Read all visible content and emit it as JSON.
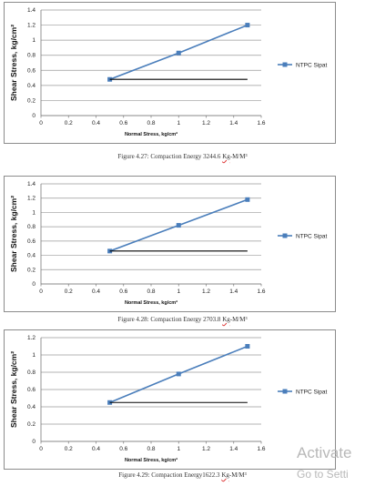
{
  "chart_data": [
    {
      "type": "line",
      "ylabel": "Shear Stress, kg/cm²",
      "xlabel": "Normal Stress, kg/cm²",
      "xlim": [
        0,
        1.6
      ],
      "ylim": [
        0,
        1.4
      ],
      "xticks": [
        "0",
        "0.2",
        "0.4",
        "0.6",
        "0.8",
        "1",
        "1.2",
        "1.4",
        "1.6"
      ],
      "yticks": [
        "0",
        "0.2",
        "0.4",
        "0.6",
        "0.8",
        "1",
        "1.2",
        "1.4"
      ],
      "grid": "horizontal",
      "legend_position": "right",
      "series": [
        {
          "name": "NTPC Sipat",
          "color": "#4a7ebb",
          "x": [
            0.5,
            1.0,
            1.5
          ],
          "y": [
            0.48,
            0.83,
            1.2
          ]
        },
        {
          "color": "#000000",
          "x": [
            0.5,
            1.5
          ],
          "y": [
            0.48,
            0.48
          ]
        }
      ]
    },
    {
      "type": "line",
      "ylabel": "Shear Stress, kg/cm²",
      "xlabel": "Normal Stress, kg/cm²",
      "xlim": [
        0,
        1.6
      ],
      "ylim": [
        0,
        1.4
      ],
      "xticks": [
        "0",
        "0.2",
        "0.4",
        "0.6",
        "0.8",
        "1",
        "1.2",
        "1.4",
        "1.6"
      ],
      "yticks": [
        "0",
        "0.2",
        "0.4",
        "0.6",
        "0.8",
        "1",
        "1.2",
        "1.4"
      ],
      "grid": "horizontal",
      "legend_position": "right",
      "series": [
        {
          "name": "NTPC Sipat",
          "color": "#4a7ebb",
          "x": [
            0.5,
            1.0,
            1.5
          ],
          "y": [
            0.46,
            0.82,
            1.18
          ]
        },
        {
          "color": "#000000",
          "x": [
            0.5,
            1.5
          ],
          "y": [
            0.46,
            0.46
          ]
        }
      ]
    },
    {
      "type": "line",
      "ylabel": "Shear Stress, kg/cm²",
      "xlabel": "Normal Stress, kg/cm²",
      "xlim": [
        0,
        1.6
      ],
      "ylim": [
        0,
        1.2
      ],
      "xticks": [
        "0",
        "0.2",
        "0.4",
        "0.6",
        "0.8",
        "1",
        "1.2",
        "1.4",
        "1.6"
      ],
      "yticks": [
        "0",
        "0.2",
        "0.4",
        "0.6",
        "0.8",
        "1",
        "1.2"
      ],
      "grid": "horizontal",
      "legend_position": "right",
      "series": [
        {
          "name": "NTPC Sipat",
          "color": "#4a7ebb",
          "x": [
            0.5,
            1.0,
            1.5
          ],
          "y": [
            0.45,
            0.78,
            1.1
          ]
        },
        {
          "color": "#000000",
          "x": [
            0.5,
            1.5
          ],
          "y": [
            0.45,
            0.45
          ]
        }
      ]
    }
  ],
  "captions": [
    {
      "prefix": "Figure 4.27: Compaction  Energy 3244.6 ",
      "kg": "Kg",
      "suffix": "-M/M³"
    },
    {
      "prefix": "Figure 4.28: Compaction  Energy 2703.8 ",
      "kg": "Kg",
      "suffix": "-M/M³"
    },
    {
      "prefix": "Figure 4.29: Compaction  Energy1622.3 ",
      "kg": "Kg",
      "suffix": "-M/M³"
    }
  ],
  "watermark": {
    "line1": "Activate",
    "line2": "Go to Setti"
  }
}
